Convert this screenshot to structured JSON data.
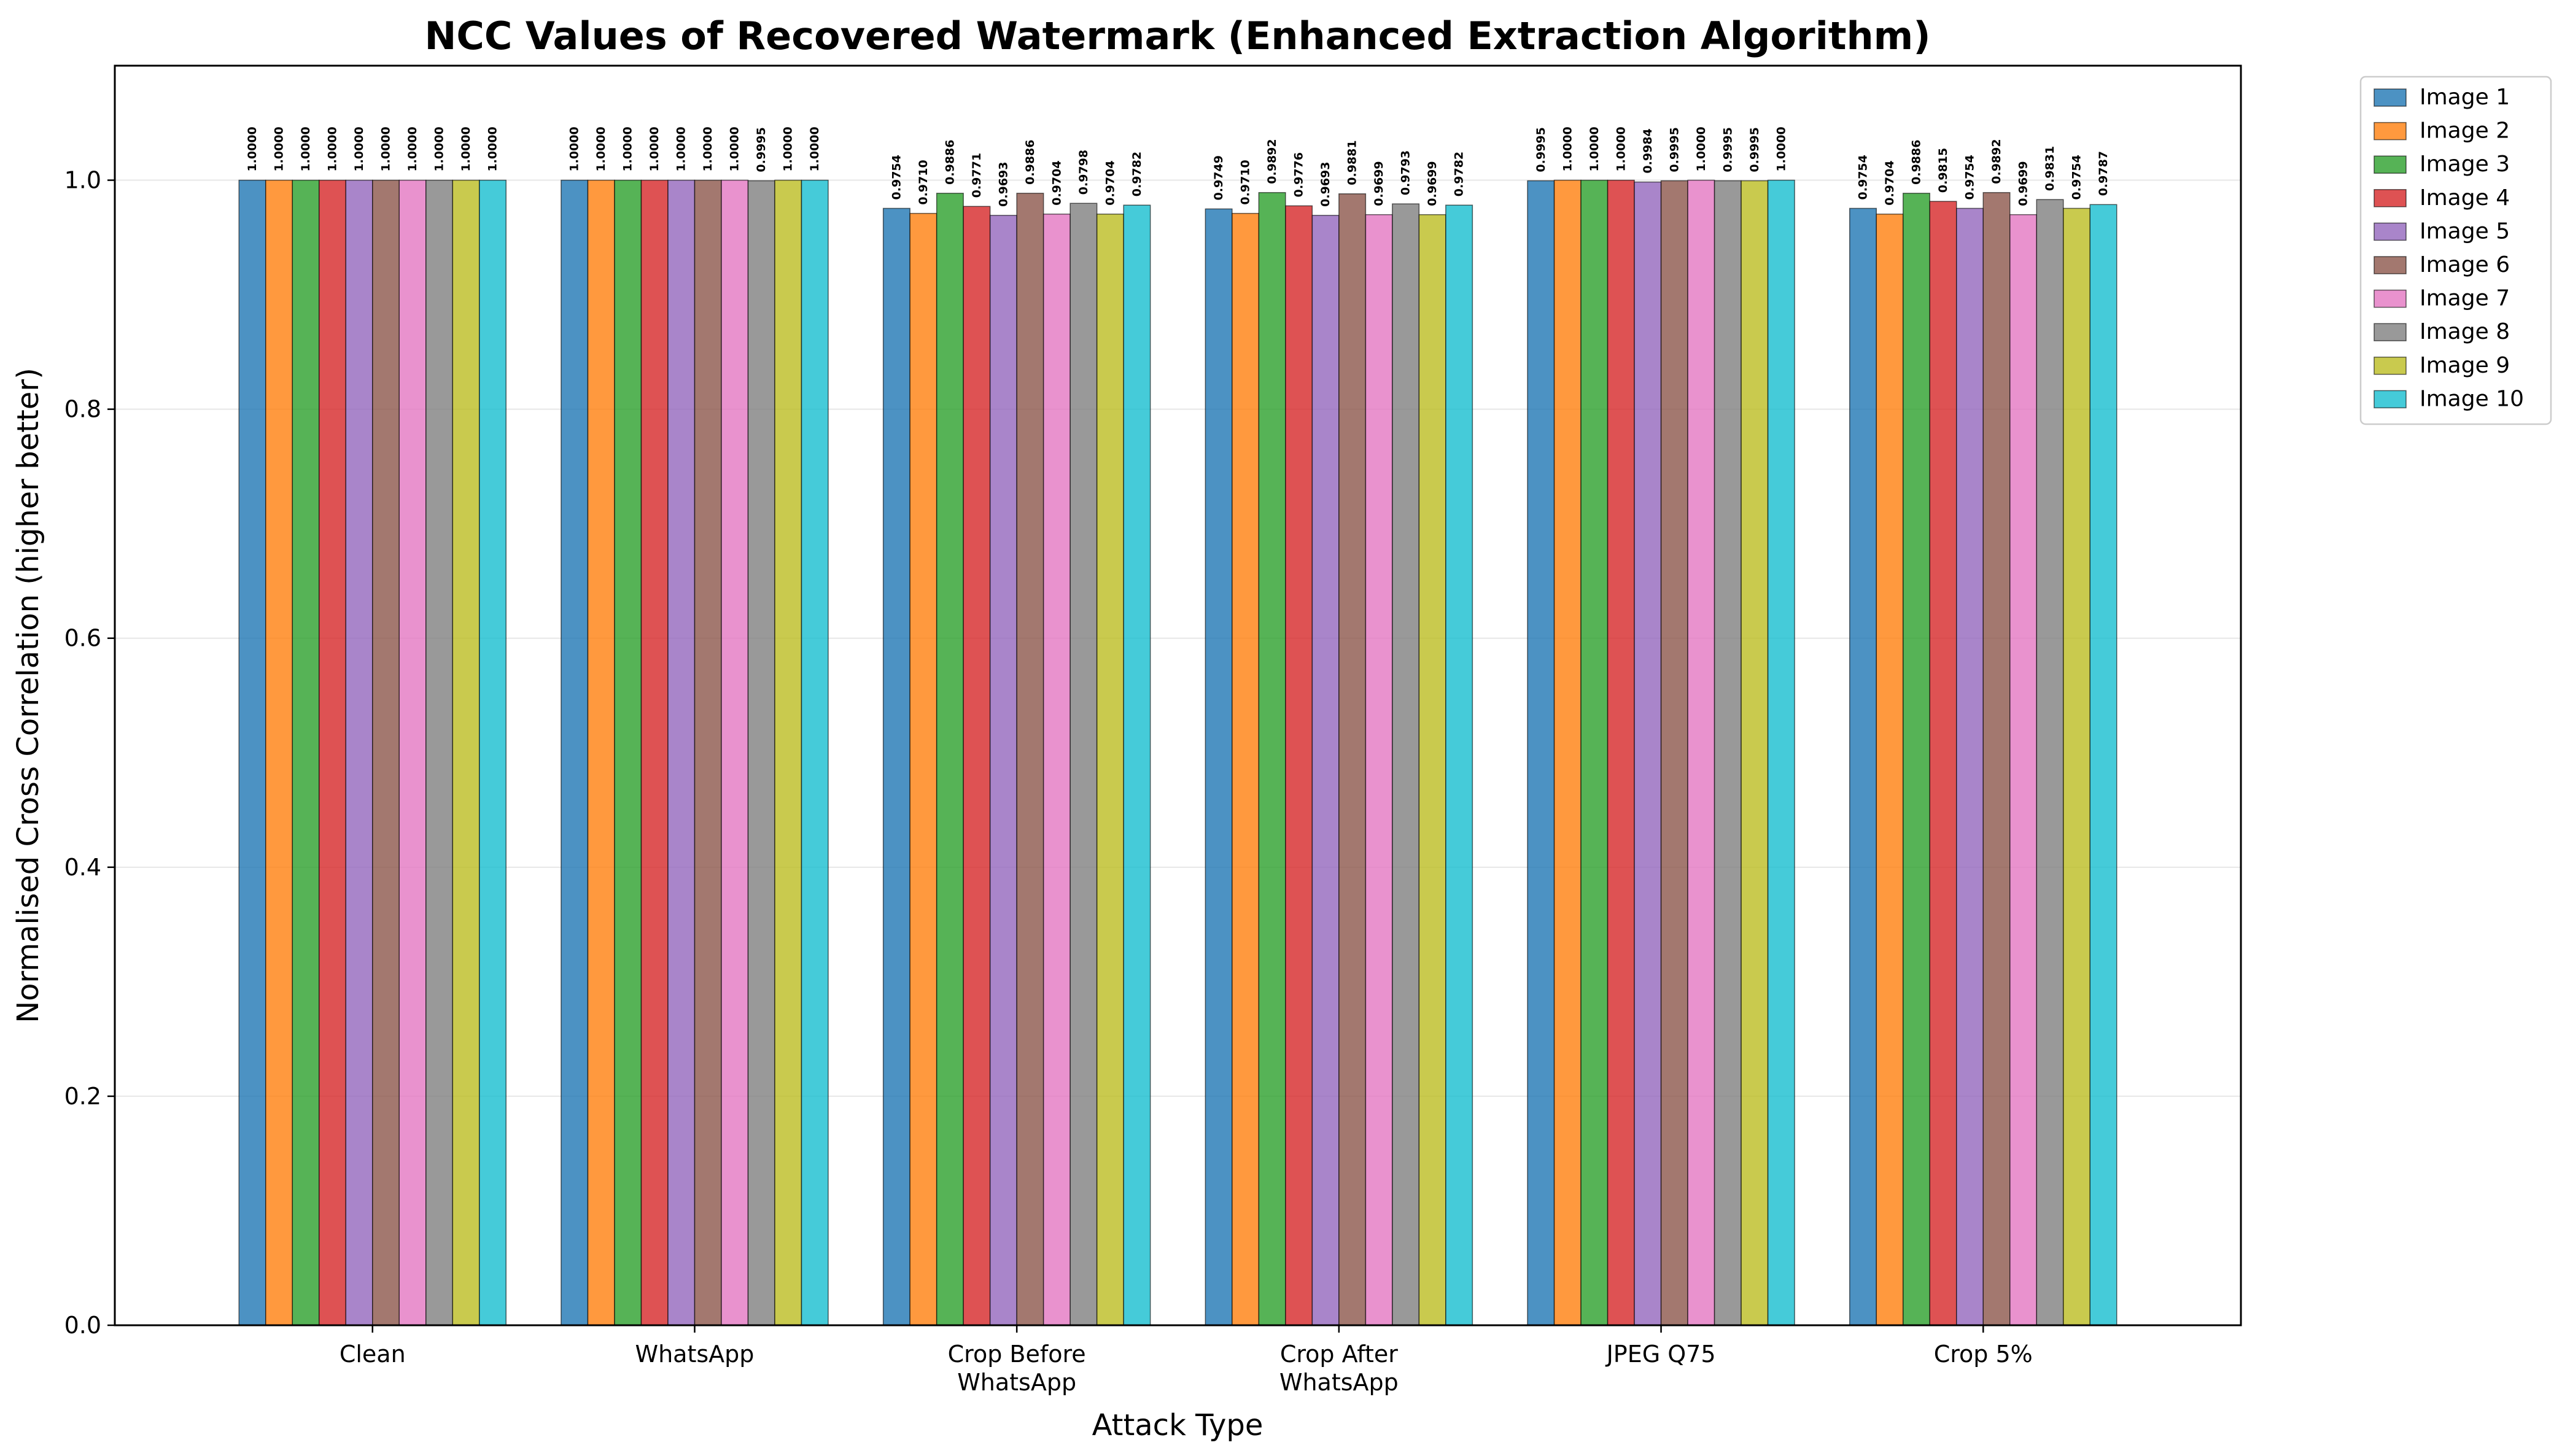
{
  "chart_data": {
    "type": "bar",
    "title": "NCC Values of Recovered Watermark (Enhanced Extraction Algorithm)",
    "xlabel": "Attack Type",
    "ylabel": "Normalised Cross Correlation (higher better)",
    "ylim": [
      0,
      1.1
    ],
    "yticks": [
      "0.0",
      "0.2",
      "0.4",
      "0.6",
      "0.8",
      "1.0"
    ],
    "ytick_values": [
      0,
      0.2,
      0.4,
      0.6,
      0.8,
      1.0
    ],
    "grid": "horizontal",
    "legend_position": "outside-top-right",
    "categories": [
      [
        "Clean"
      ],
      [
        "WhatsApp"
      ],
      [
        "Crop Before",
        "WhatsApp"
      ],
      [
        "Crop After",
        "WhatsApp"
      ],
      [
        "JPEG Q75"
      ],
      [
        "Crop 5%"
      ]
    ],
    "series": [
      {
        "name": "Image 1",
        "color": "#1f77b4",
        "values": [
          1.0,
          1.0,
          0.9754,
          0.9749,
          0.9995,
          0.9754
        ],
        "labels": [
          "1.0000",
          "1.0000",
          "0.9754",
          "0.9749",
          "0.9995",
          "0.9754"
        ]
      },
      {
        "name": "Image 2",
        "color": "#ff7f0e",
        "values": [
          1.0,
          1.0,
          0.971,
          0.971,
          1.0,
          0.9704
        ],
        "labels": [
          "1.0000",
          "1.0000",
          "0.9710",
          "0.9710",
          "1.0000",
          "0.9704"
        ]
      },
      {
        "name": "Image 3",
        "color": "#2ca02c",
        "values": [
          1.0,
          1.0,
          0.9886,
          0.9892,
          1.0,
          0.9886
        ],
        "labels": [
          "1.0000",
          "1.0000",
          "0.9886",
          "0.9892",
          "1.0000",
          "0.9886"
        ]
      },
      {
        "name": "Image 4",
        "color": "#d62728",
        "values": [
          1.0,
          1.0,
          0.9771,
          0.9776,
          1.0,
          0.9815
        ],
        "labels": [
          "1.0000",
          "1.0000",
          "0.9771",
          "0.9776",
          "1.0000",
          "0.9815"
        ]
      },
      {
        "name": "Image 5",
        "color": "#9467bd",
        "values": [
          1.0,
          1.0,
          0.9693,
          0.9693,
          0.9984,
          0.9754
        ],
        "labels": [
          "1.0000",
          "1.0000",
          "0.9693",
          "0.9693",
          "0.9984",
          "0.9754"
        ]
      },
      {
        "name": "Image 6",
        "color": "#8c564b",
        "values": [
          1.0,
          1.0,
          0.9886,
          0.9881,
          0.9995,
          0.9892
        ],
        "labels": [
          "1.0000",
          "1.0000",
          "0.9886",
          "0.9881",
          "0.9995",
          "0.9892"
        ]
      },
      {
        "name": "Image 7",
        "color": "#e377c2",
        "values": [
          1.0,
          1.0,
          0.9704,
          0.9699,
          1.0,
          0.9699
        ],
        "labels": [
          "1.0000",
          "1.0000",
          "0.9704",
          "0.9699",
          "1.0000",
          "0.9699"
        ]
      },
      {
        "name": "Image 8",
        "color": "#7f7f7f",
        "values": [
          1.0,
          0.9995,
          0.9798,
          0.9793,
          0.9995,
          0.9831
        ],
        "labels": [
          "1.0000",
          "0.9995",
          "0.9798",
          "0.9793",
          "0.9995",
          "0.9831"
        ]
      },
      {
        "name": "Image 9",
        "color": "#bcbd22",
        "values": [
          1.0,
          1.0,
          0.9704,
          0.9699,
          0.9995,
          0.9754
        ],
        "labels": [
          "1.0000",
          "1.0000",
          "0.9704",
          "0.9699",
          "0.9995",
          "0.9754"
        ]
      },
      {
        "name": "Image 10",
        "color": "#17becf",
        "values": [
          1.0,
          1.0,
          0.9782,
          0.9782,
          1.0,
          0.9787
        ],
        "labels": [
          "1.0000",
          "1.0000",
          "0.9782",
          "0.9782",
          "1.0000",
          "0.9787"
        ]
      }
    ]
  }
}
